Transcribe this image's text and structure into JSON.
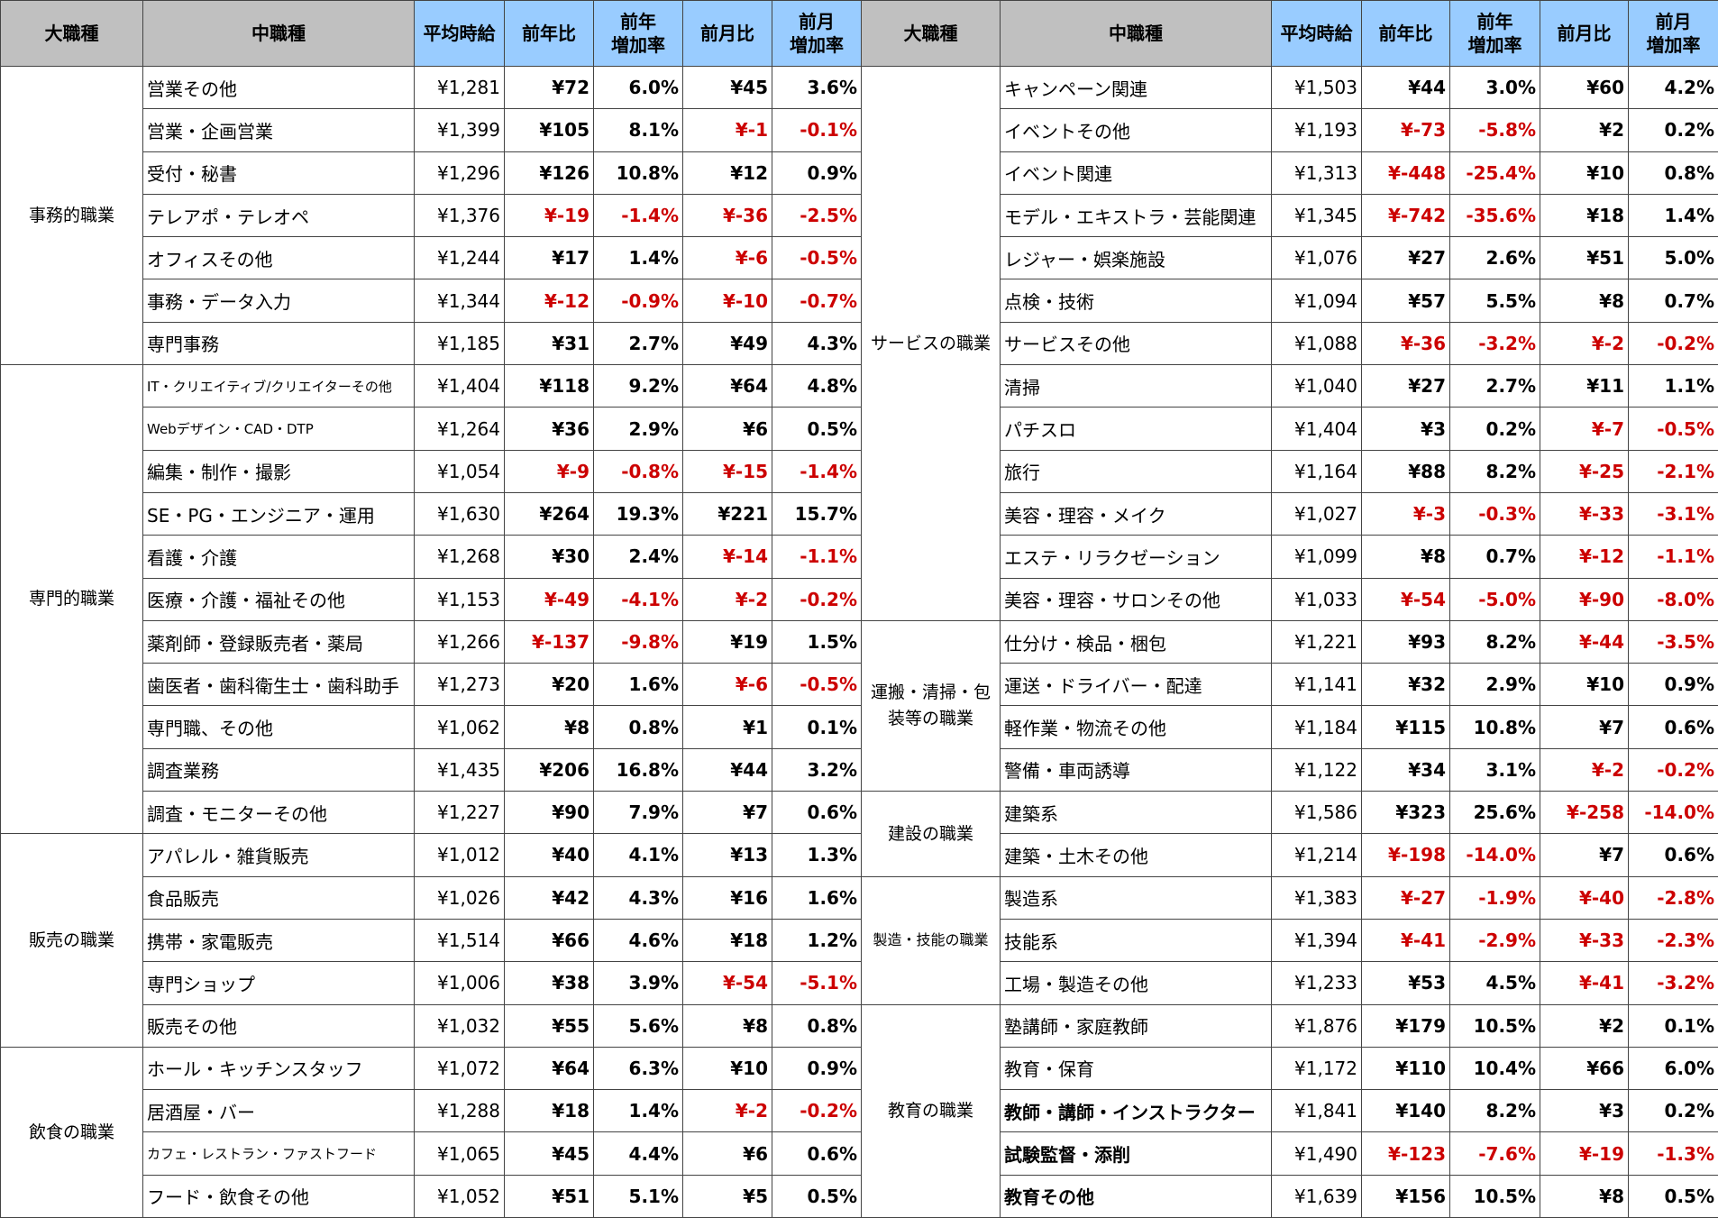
{
  "headers": [
    "大職種",
    "中職種",
    "平均時給",
    "前年比",
    "前年\n増加率",
    "前月比",
    "前月\n増加率"
  ],
  "colors": {
    "header_gray": "#c0c0c0",
    "header_blue": "#99ccff",
    "negative": "#cc0000"
  },
  "left": [
    {
      "category": "事務的職業",
      "items": [
        [
          "営業その他",
          "¥1,281",
          "¥72",
          "6.0%",
          "¥45",
          "3.6%"
        ],
        [
          "営業・企画営業",
          "¥1,399",
          "¥105",
          "8.1%",
          "¥-1",
          "-0.1%"
        ],
        [
          "受付・秘書",
          "¥1,296",
          "¥126",
          "10.8%",
          "¥12",
          "0.9%"
        ],
        [
          "テレアポ・テレオペ",
          "¥1,376",
          "¥-19",
          "-1.4%",
          "¥-36",
          "-2.5%"
        ],
        [
          "オフィスその他",
          "¥1,244",
          "¥17",
          "1.4%",
          "¥-6",
          "-0.5%"
        ],
        [
          "事務・データ入力",
          "¥1,344",
          "¥-12",
          "-0.9%",
          "¥-10",
          "-0.7%"
        ],
        [
          "専門事務",
          "¥1,185",
          "¥31",
          "2.7%",
          "¥49",
          "4.3%"
        ]
      ]
    },
    {
      "category": "専門的職業",
      "items": [
        [
          "IT・クリエイティブ/クリエイターその他",
          "¥1,404",
          "¥118",
          "9.2%",
          "¥64",
          "4.8%"
        ],
        [
          "Webデザイン・CAD・DTP",
          "¥1,264",
          "¥36",
          "2.9%",
          "¥6",
          "0.5%"
        ],
        [
          "編集・制作・撮影",
          "¥1,054",
          "¥-9",
          "-0.8%",
          "¥-15",
          "-1.4%"
        ],
        [
          "SE・PG・エンジニア・運用",
          "¥1,630",
          "¥264",
          "19.3%",
          "¥221",
          "15.7%"
        ],
        [
          "看護・介護",
          "¥1,268",
          "¥30",
          "2.4%",
          "¥-14",
          "-1.1%"
        ],
        [
          "医療・介護・福祉その他",
          "¥1,153",
          "¥-49",
          "-4.1%",
          "¥-2",
          "-0.2%"
        ],
        [
          "薬剤師・登録販売者・薬局",
          "¥1,266",
          "¥-137",
          "-9.8%",
          "¥19",
          "1.5%"
        ],
        [
          "歯医者・歯科衛生士・歯科助手",
          "¥1,273",
          "¥20",
          "1.6%",
          "¥-6",
          "-0.5%"
        ],
        [
          "専門職、その他",
          "¥1,062",
          "¥8",
          "0.8%",
          "¥1",
          "0.1%"
        ],
        [
          "調査業務",
          "¥1,435",
          "¥206",
          "16.8%",
          "¥44",
          "3.2%"
        ],
        [
          "調査・モニターその他",
          "¥1,227",
          "¥90",
          "7.9%",
          "¥7",
          "0.6%"
        ]
      ]
    },
    {
      "category": "販売の職業",
      "items": [
        [
          "アパレル・雑貨販売",
          "¥1,012",
          "¥40",
          "4.1%",
          "¥13",
          "1.3%"
        ],
        [
          "食品販売",
          "¥1,026",
          "¥42",
          "4.3%",
          "¥16",
          "1.6%"
        ],
        [
          "携帯・家電販売",
          "¥1,514",
          "¥66",
          "4.6%",
          "¥18",
          "1.2%"
        ],
        [
          "専門ショップ",
          "¥1,006",
          "¥38",
          "3.9%",
          "¥-54",
          "-5.1%"
        ],
        [
          "販売その他",
          "¥1,032",
          "¥55",
          "5.6%",
          "¥8",
          "0.8%"
        ]
      ]
    },
    {
      "category": "飲食の職業",
      "items": [
        [
          "ホール・キッチンスタッフ",
          "¥1,072",
          "¥64",
          "6.3%",
          "¥10",
          "0.9%"
        ],
        [
          "居酒屋・バー",
          "¥1,288",
          "¥18",
          "1.4%",
          "¥-2",
          "-0.2%"
        ],
        [
          "カフェ・レストラン・ファストフード",
          "¥1,065",
          "¥45",
          "4.4%",
          "¥6",
          "0.6%"
        ],
        [
          "フード・飲食その他",
          "¥1,052",
          "¥51",
          "5.1%",
          "¥5",
          "0.5%"
        ]
      ]
    }
  ],
  "right": [
    {
      "category": "サービスの職業",
      "items": [
        [
          "キャンペーン関連",
          "¥1,503",
          "¥44",
          "3.0%",
          "¥60",
          "4.2%"
        ],
        [
          "イベントその他",
          "¥1,193",
          "¥-73",
          "-5.8%",
          "¥2",
          "0.2%"
        ],
        [
          "イベント関連",
          "¥1,313",
          "¥-448",
          "-25.4%",
          "¥10",
          "0.8%"
        ],
        [
          "モデル・エキストラ・芸能関連",
          "¥1,345",
          "¥-742",
          "-35.6%",
          "¥18",
          "1.4%"
        ],
        [
          "レジャー・娯楽施設",
          "¥1,076",
          "¥27",
          "2.6%",
          "¥51",
          "5.0%"
        ],
        [
          "点検・技術",
          "¥1,094",
          "¥57",
          "5.5%",
          "¥8",
          "0.7%"
        ],
        [
          "サービスその他",
          "¥1,088",
          "¥-36",
          "-3.2%",
          "¥-2",
          "-0.2%"
        ],
        [
          "清掃",
          "¥1,040",
          "¥27",
          "2.7%",
          "¥11",
          "1.1%"
        ],
        [
          "パチスロ",
          "¥1,404",
          "¥3",
          "0.2%",
          "¥-7",
          "-0.5%"
        ],
        [
          "旅行",
          "¥1,164",
          "¥88",
          "8.2%",
          "¥-25",
          "-2.1%"
        ],
        [
          "美容・理容・メイク",
          "¥1,027",
          "¥-3",
          "-0.3%",
          "¥-33",
          "-3.1%"
        ],
        [
          "エステ・リラクゼーション",
          "¥1,099",
          "¥8",
          "0.7%",
          "¥-12",
          "-1.1%"
        ],
        [
          "美容・理容・サロンその他",
          "¥1,033",
          "¥-54",
          "-5.0%",
          "¥-90",
          "-8.0%"
        ]
      ]
    },
    {
      "category": "運搬・清掃・包装等の職業",
      "items": [
        [
          "仕分け・検品・梱包",
          "¥1,221",
          "¥93",
          "8.2%",
          "¥-44",
          "-3.5%"
        ],
        [
          "運送・ドライバー・配達",
          "¥1,141",
          "¥32",
          "2.9%",
          "¥10",
          "0.9%"
        ],
        [
          "軽作業・物流その他",
          "¥1,184",
          "¥115",
          "10.8%",
          "¥7",
          "0.6%"
        ],
        [
          "警備・車両誘導",
          "¥1,122",
          "¥34",
          "3.1%",
          "¥-2",
          "-0.2%"
        ]
      ]
    },
    {
      "category": "建設の職業",
      "items": [
        [
          "建築系",
          "¥1,586",
          "¥323",
          "25.6%",
          "¥-258",
          "-14.0%"
        ],
        [
          "建築・土木その他",
          "¥1,214",
          "¥-198",
          "-14.0%",
          "¥7",
          "0.6%"
        ]
      ]
    },
    {
      "category": "製造・技能の職業",
      "items": [
        [
          "製造系",
          "¥1,383",
          "¥-27",
          "-1.9%",
          "¥-40",
          "-2.8%"
        ],
        [
          "技能系",
          "¥1,394",
          "¥-41",
          "-2.9%",
          "¥-33",
          "-2.3%"
        ],
        [
          "工場・製造その他",
          "¥1,233",
          "¥53",
          "4.5%",
          "¥-41",
          "-3.2%"
        ]
      ]
    },
    {
      "category": "教育の職業",
      "items": [
        [
          "塾講師・家庭教師",
          "¥1,876",
          "¥179",
          "10.5%",
          "¥2",
          "0.1%"
        ],
        [
          "教育・保育",
          "¥1,172",
          "¥110",
          "10.4%",
          "¥66",
          "6.0%"
        ],
        [
          "教師・講師・インストラクター",
          "¥1,841",
          "¥140",
          "8.2%",
          "¥3",
          "0.2%"
        ],
        [
          "試験監督・添削",
          "¥1,490",
          "¥-123",
          "-7.6%",
          "¥-19",
          "-1.3%"
        ],
        [
          "教育その他",
          "¥1,639",
          "¥156",
          "10.5%",
          "¥8",
          "0.5%"
        ]
      ]
    }
  ],
  "emphasized_items": [
    "教師・講師・インストラクター",
    "試験監督・添削",
    "教育その他"
  ]
}
